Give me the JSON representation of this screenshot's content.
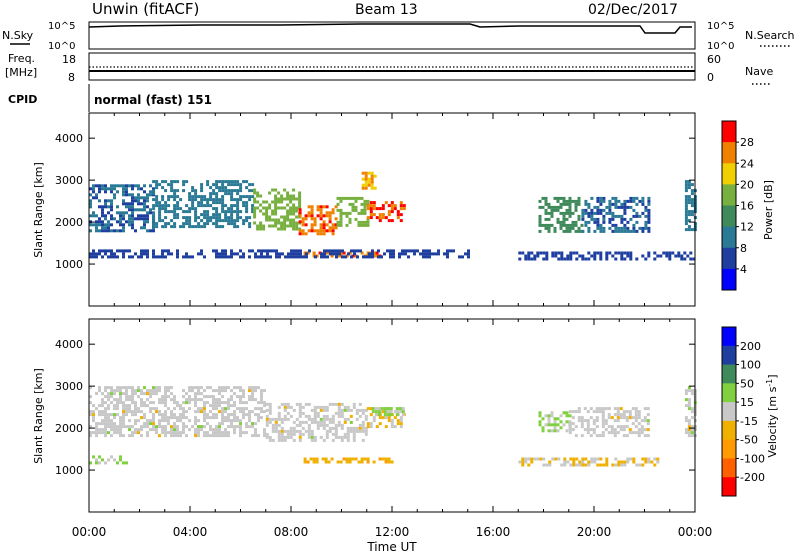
{
  "header": {
    "station": "Unwin (fitACF)",
    "beam": "Beam 13",
    "date": "02/Dec/2017"
  },
  "side_labels": {
    "nsky": "N.Sky",
    "nsearch": "N.Search",
    "freq_line1": "Freq.",
    "freq_line2": "[MHz]",
    "nave": "Nave",
    "cpid": "CPID",
    "cpid_value": "normal (fast) 151"
  },
  "noise_panel": {
    "left_ticks": [
      "10^5",
      "10^0"
    ],
    "right_ticks": [
      "10^5",
      "10^0"
    ]
  },
  "freq_panel": {
    "left_ticks": [
      "18",
      "8"
    ],
    "right_ticks": [
      "60",
      "0"
    ]
  },
  "colors": {
    "power_scale": [
      "#0000ff",
      "#1e3fa0",
      "#2a7a96",
      "#3f8a5a",
      "#78b040",
      "#f0d000",
      "#f08000",
      "#ff0000"
    ],
    "velocity_scale": [
      "#ff0000",
      "#ff6000",
      "#ff9a00",
      "#f0b000",
      "#c8c8c8",
      "#80d040",
      "#3f8a5a",
      "#1e3fa0",
      "#0000ff"
    ]
  },
  "chart_data": [
    {
      "type": "heatmap",
      "name": "power",
      "title": "",
      "xlabel": "Time UT",
      "ylabel": "Slant Range [km]",
      "xlim": [
        "00:00",
        "24:00"
      ],
      "ylim": [
        0,
        4600
      ],
      "x_ticks": [
        "00:00",
        "04:00",
        "08:00",
        "12:00",
        "16:00",
        "20:00",
        "00:00"
      ],
      "y_ticks": [
        "1000",
        "2000",
        "3000",
        "4000"
      ],
      "colorbar": {
        "label": "Power [dB]",
        "range": [
          0,
          32
        ],
        "ticks": [
          "4",
          "8",
          "12",
          "16",
          "20",
          "24",
          "28"
        ]
      },
      "echo_regions_hours_km_dB": [
        {
          "t": [
            0.0,
            2.5
          ],
          "r": [
            1800,
            2900
          ],
          "value": 8
        },
        {
          "t": [
            2.5,
            6.5
          ],
          "r": [
            1900,
            3000
          ],
          "value": 10
        },
        {
          "t": [
            6.5,
            8.3
          ],
          "r": [
            1800,
            2800
          ],
          "value": 18
        },
        {
          "t": [
            8.3,
            9.8
          ],
          "r": [
            1700,
            2400
          ],
          "value": 27
        },
        {
          "t": [
            9.8,
            11.0
          ],
          "r": [
            1900,
            2600
          ],
          "value": 18
        },
        {
          "t": [
            11.0,
            12.5
          ],
          "r": [
            2000,
            2500
          ],
          "value": 28
        },
        {
          "t": [
            8.5,
            11.5
          ],
          "r": [
            1200,
            1300
          ],
          "value": 27
        },
        {
          "t": [
            10.8,
            11.3
          ],
          "r": [
            2800,
            3200
          ],
          "value": 24
        },
        {
          "t": [
            0.0,
            15.0
          ],
          "r": [
            1150,
            1350
          ],
          "value": 6
        },
        {
          "t": [
            17.8,
            19.5
          ],
          "r": [
            1800,
            2600
          ],
          "value": 14
        },
        {
          "t": [
            19.5,
            22.2
          ],
          "r": [
            1800,
            2600
          ],
          "value": 8
        },
        {
          "t": [
            17.0,
            24.0
          ],
          "r": [
            1150,
            1300
          ],
          "value": 6
        },
        {
          "t": [
            23.6,
            24.0
          ],
          "r": [
            1800,
            3000
          ],
          "value": 10
        }
      ]
    },
    {
      "type": "heatmap",
      "name": "velocity",
      "title": "",
      "xlabel": "Time UT",
      "ylabel": "Slant Range [km]",
      "xlim": [
        "00:00",
        "24:00"
      ],
      "ylim": [
        0,
        4600
      ],
      "x_ticks": [
        "00:00",
        "04:00",
        "08:00",
        "12:00",
        "16:00",
        "20:00",
        "00:00"
      ],
      "y_ticks": [
        "1000",
        "2000",
        "3000",
        "4000"
      ],
      "colorbar": {
        "label": "Velocity [m s^-1]",
        "range": [
          -250,
          250
        ],
        "ticks": [
          "200",
          "100",
          "50",
          "15",
          "-15",
          "-50",
          "-100",
          "-200"
        ]
      },
      "echo_regions_hours_km_ms": [
        {
          "t": [
            0.0,
            7.0
          ],
          "r": [
            1800,
            3000
          ],
          "value": 0
        },
        {
          "t": [
            7.0,
            11.0
          ],
          "r": [
            1700,
            2600
          ],
          "value": 0
        },
        {
          "t": [
            11.0,
            12.5
          ],
          "r": [
            2000,
            2500
          ],
          "value": -30
        },
        {
          "t": [
            11.2,
            12.5
          ],
          "r": [
            2300,
            2500
          ],
          "value": 40
        },
        {
          "t": [
            8.5,
            12.0
          ],
          "r": [
            1200,
            1300
          ],
          "value": -60
        },
        {
          "t": [
            0.0,
            1.5
          ],
          "r": [
            1150,
            1350
          ],
          "value": 30
        },
        {
          "t": [
            17.8,
            19.0
          ],
          "r": [
            1900,
            2400
          ],
          "value": 40
        },
        {
          "t": [
            19.0,
            22.2
          ],
          "r": [
            1800,
            2500
          ],
          "value": 0
        },
        {
          "t": [
            17.0,
            22.5
          ],
          "r": [
            1150,
            1300
          ],
          "value": -30
        },
        {
          "t": [
            23.6,
            24.0
          ],
          "r": [
            1800,
            3000
          ],
          "value": 0
        }
      ]
    }
  ]
}
